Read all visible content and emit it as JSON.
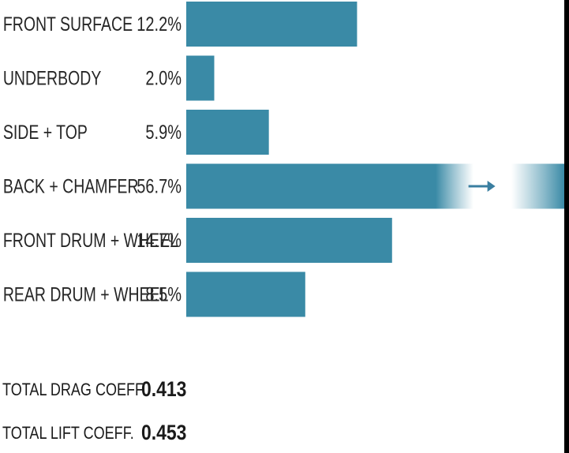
{
  "chart_data": {
    "type": "bar",
    "orientation": "horizontal",
    "categories": [
      "FRONT SURFACE",
      "UNDERBODY",
      "SIDE + TOP",
      "BACK + CHAMFER",
      "FRONT DRUM + WHEEL",
      "REAR DRUM + WHEEL"
    ],
    "values": [
      12.2,
      2.0,
      5.9,
      56.7,
      14.7,
      8.5
    ],
    "value_labels": [
      "12.2%",
      "2.0%",
      "5.9%",
      "56.7%",
      "14.7%",
      "8.5%"
    ],
    "unit": "%",
    "bar_color": "#3a8aa6",
    "truncated_bar_index": 3,
    "xlim": [
      0,
      27
    ]
  },
  "summary": {
    "drag_label": "TOTAL DRAG COEFF.",
    "drag_value": "0.413",
    "lift_label": "TOTAL LIFT COEFF.",
    "lift_value": "0.453"
  }
}
